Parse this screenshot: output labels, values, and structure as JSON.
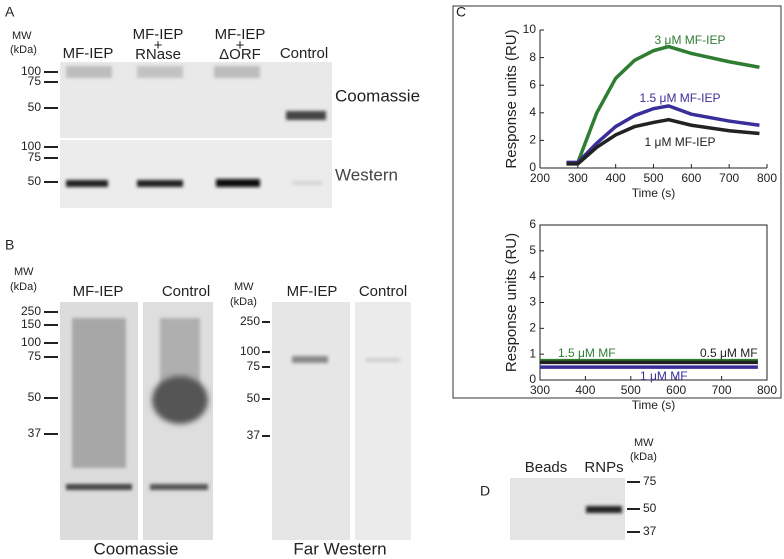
{
  "panel_labels": [
    "A",
    "B",
    "C",
    "D"
  ],
  "panel_a": {
    "mw_label": [
      "MW",
      "(kDa)"
    ],
    "lanes": [
      [
        "MF-IEP"
      ],
      [
        "MF-IEP",
        "+",
        "RNase"
      ],
      [
        "MF-IEP",
        "+",
        "ΔORF"
      ],
      [
        "Control"
      ]
    ],
    "markers_top": [
      "100",
      "75",
      "50"
    ],
    "markers_bottom": [
      "100",
      "75",
      "50"
    ],
    "gel_labels": [
      "Coomassie",
      "Western"
    ]
  },
  "panel_b": {
    "coomassie": {
      "mw_label": [
        "MW",
        "(kDa)"
      ],
      "markers": [
        "250",
        "150",
        "100",
        "75",
        "50",
        "37"
      ],
      "lanes": [
        "MF-IEP",
        "Control"
      ],
      "caption": "Coomassie"
    },
    "far_western": {
      "mw_label": [
        "MW",
        "(kDa)"
      ],
      "markers": [
        "250",
        "100",
        "75",
        "50",
        "37"
      ],
      "lanes": [
        "MF-IEP",
        "Control"
      ],
      "caption": "Far Western"
    }
  },
  "panel_d": {
    "lanes": [
      "Beads",
      "RNPs"
    ],
    "mw_label": [
      "MW",
      "(kDa)"
    ],
    "markers": [
      "75",
      "50",
      "37"
    ]
  },
  "chart_data": [
    {
      "type": "line",
      "ylabel": "Response  units (RU)",
      "xlabel": "Time (s)",
      "x": [
        270,
        295,
        300,
        350,
        400,
        450,
        500,
        540,
        600,
        700,
        780
      ],
      "xlim": [
        200,
        800
      ],
      "xticks": [
        200,
        300,
        400,
        500,
        600,
        700,
        800
      ],
      "ylim": [
        0,
        10
      ],
      "yticks": [
        0,
        2,
        4,
        6,
        8,
        10
      ],
      "series": [
        {
          "name": "3 μM MF-IEP",
          "color": "#2e7d32",
          "values": [
            0.4,
            0.4,
            0.4,
            4,
            6.5,
            7.8,
            8.5,
            8.8,
            8.3,
            7.7,
            7.3
          ]
        },
        {
          "name": "1.5 μM MF-IEP",
          "color": "#3a2f9a",
          "values": [
            0.4,
            0.4,
            0.4,
            1.8,
            3,
            3.8,
            4.3,
            4.5,
            3.9,
            3.4,
            3.1
          ]
        },
        {
          "name": "1 μM MF-IEP",
          "color": "#222222",
          "values": [
            0.3,
            0.3,
            0.3,
            1.5,
            2.4,
            3,
            3.3,
            3.5,
            3.1,
            2.7,
            2.5
          ]
        }
      ]
    },
    {
      "type": "line",
      "ylabel": "Response  units (RU)",
      "xlabel": "Time (s)",
      "x": [
        300,
        780
      ],
      "xlim": [
        300,
        800
      ],
      "xticks": [
        300,
        400,
        500,
        600,
        700,
        800
      ],
      "ylim": [
        0,
        6
      ],
      "yticks": [
        0,
        1,
        2,
        3,
        4,
        5,
        6
      ],
      "series": [
        {
          "name": "1.5 μM MF",
          "color": "#2e7d32",
          "values": [
            0.75,
            0.75
          ]
        },
        {
          "name": "0.5 μM MF",
          "color": "#222222",
          "values": [
            0.68,
            0.68
          ]
        },
        {
          "name": "1 μM MF",
          "color": "#3a2f9a",
          "values": [
            0.5,
            0.5
          ]
        }
      ]
    }
  ]
}
